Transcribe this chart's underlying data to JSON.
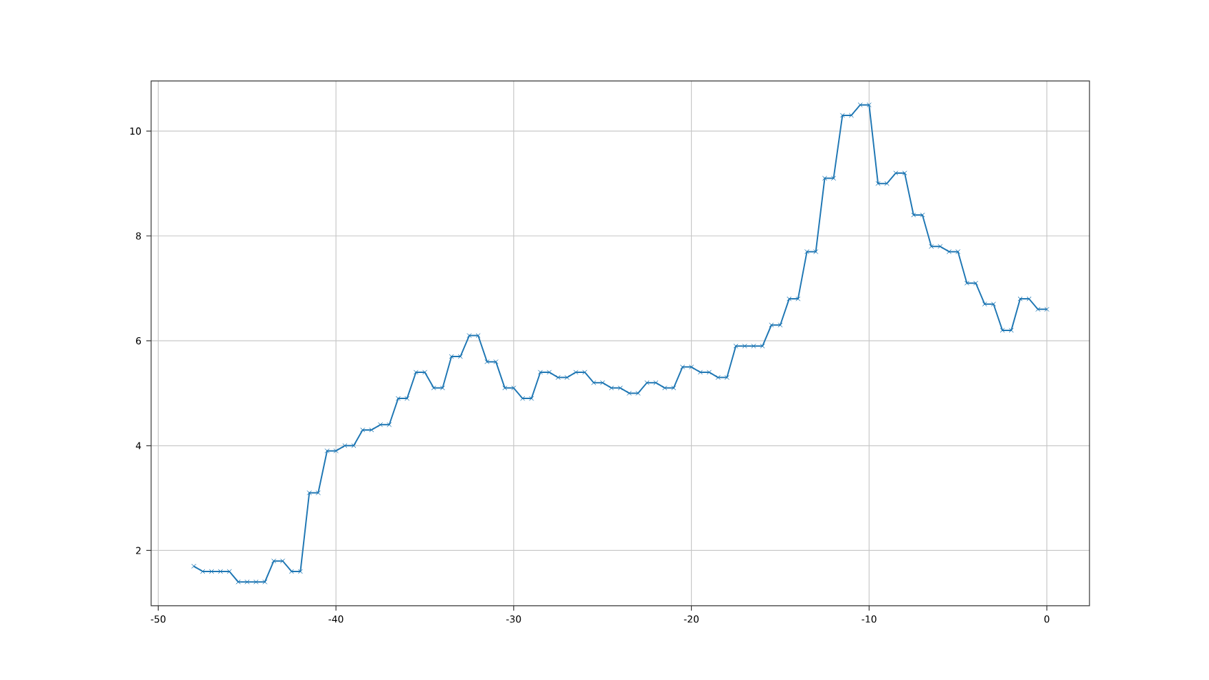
{
  "chart_data": {
    "type": "line",
    "x": [
      -48,
      -47.5,
      -47,
      -46.5,
      -46,
      -45.5,
      -45,
      -44.5,
      -44,
      -43.5,
      -43,
      -42.5,
      -42,
      -41.5,
      -41,
      -40.5,
      -40,
      -39.5,
      -39,
      -38.5,
      -38,
      -37.5,
      -37,
      -36.5,
      -36,
      -35.5,
      -35,
      -34.5,
      -34,
      -33.5,
      -33,
      -32.5,
      -32,
      -31.5,
      -31,
      -30.5,
      -30,
      -29.5,
      -29,
      -28.5,
      -28,
      -27.5,
      -27,
      -26.5,
      -26,
      -25.5,
      -25,
      -24.5,
      -24,
      -23.5,
      -23,
      -22.5,
      -22,
      -21.5,
      -21,
      -20.5,
      -20,
      -19.5,
      -19,
      -18.5,
      -18,
      -17.5,
      -17,
      -16.5,
      -16,
      -15.5,
      -15,
      -14.5,
      -14,
      -13.5,
      -13,
      -12.5,
      -12,
      -11.5,
      -11,
      -10.5,
      -10,
      -9.5,
      -9,
      -8.5,
      -8,
      -7.5,
      -7,
      -6.5,
      -6,
      -5.5,
      -5,
      -4.5,
      -4,
      -3.5,
      -3,
      -2.5,
      -2,
      -1.5,
      -1,
      -0.5,
      0
    ],
    "series": [
      {
        "color": "#1f77b4",
        "values": [
          1.7,
          1.6,
          1.6,
          1.6,
          1.6,
          1.4,
          1.4,
          1.4,
          1.4,
          1.8,
          1.8,
          1.6,
          1.6,
          3.1,
          3.1,
          3.9,
          3.9,
          4.0,
          4.0,
          4.3,
          4.3,
          4.4,
          4.4,
          4.9,
          4.9,
          5.4,
          5.4,
          5.1,
          5.1,
          5.7,
          5.7,
          6.1,
          6.1,
          5.6,
          5.6,
          5.1,
          5.1,
          4.9,
          4.9,
          5.4,
          5.4,
          5.3,
          5.3,
          5.4,
          5.4,
          5.2,
          5.2,
          5.1,
          5.1,
          5.0,
          5.0,
          5.2,
          5.2,
          5.1,
          5.1,
          5.5,
          5.5,
          5.4,
          5.4,
          5.3,
          5.3,
          5.9,
          5.9,
          5.9,
          5.9,
          6.3,
          6.3,
          6.8,
          6.8,
          7.7,
          7.7,
          9.1,
          9.1,
          10.3,
          10.3,
          10.5,
          10.5,
          9.0,
          9.0,
          9.2,
          9.2,
          8.4,
          8.4,
          7.8,
          7.8,
          7.7,
          7.7,
          7.1,
          7.1,
          6.7,
          6.7,
          6.2,
          6.2,
          6.8,
          6.8,
          6.6,
          6.6
        ]
      }
    ],
    "xlim": [
      -50.4,
      2.4
    ],
    "ylim": [
      0.945,
      10.955
    ],
    "xticks": [
      -50,
      -40,
      -30,
      -20,
      -10,
      0
    ],
    "yticks": [
      2,
      4,
      6,
      8,
      10
    ],
    "grid": true,
    "marker": "cross",
    "line_style": "solid"
  }
}
